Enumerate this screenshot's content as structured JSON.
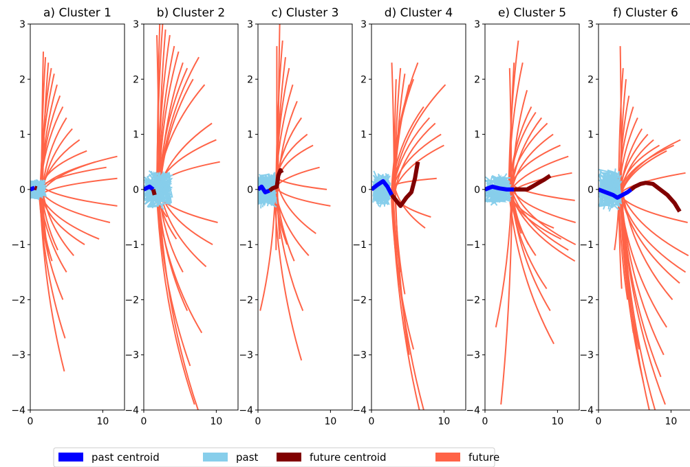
{
  "colors": {
    "past_centroid": "#0000ff",
    "past": "#87ceeb",
    "future_centroid": "#800000",
    "future": "#ff6347"
  },
  "legend": {
    "placement": "bottom-left",
    "items": [
      {
        "label": "past centroid",
        "color": "#0000ff"
      },
      {
        "label": "past",
        "color": "#87ceeb"
      },
      {
        "label": "future centroid",
        "color": "#800000"
      },
      {
        "label": "future",
        "color": "#ff6347"
      }
    ]
  },
  "chart_data": [
    {
      "type": "line",
      "title": "a) Cluster 1",
      "xlim": [
        0,
        13
      ],
      "ylim": [
        -4,
        3
      ],
      "xticks": [
        0,
        10
      ],
      "yticks": [
        -4,
        -3,
        -2,
        -1,
        0,
        1,
        2,
        3
      ],
      "past_centroid": [
        [
          0.0,
          0.0
        ],
        [
          0.6,
          0.03
        ]
      ],
      "future_centroid": [
        [
          0.6,
          0.03
        ],
        [
          0.9,
          0.02
        ]
      ],
      "future_fan": {
        "origin": [
          1.5,
          0.0
        ],
        "endpoints": [
          [
            1.8,
            2.5
          ],
          [
            2.1,
            2.4
          ],
          [
            2.5,
            2.3
          ],
          [
            2.9,
            2.2
          ],
          [
            3.3,
            2.1
          ],
          [
            3.7,
            1.9
          ],
          [
            4.1,
            1.7
          ],
          [
            4.5,
            1.5
          ],
          [
            5.0,
            1.3
          ],
          [
            5.8,
            1.1
          ],
          [
            6.8,
            0.9
          ],
          [
            7.8,
            0.7
          ],
          [
            9.0,
            0.5
          ],
          [
            10.5,
            0.4
          ],
          [
            12.0,
            0.6
          ],
          [
            12.0,
            0.2
          ],
          [
            12.0,
            -0.3
          ],
          [
            11.0,
            -0.6
          ],
          [
            9.5,
            -0.9
          ],
          [
            7.5,
            -1.0
          ],
          [
            6.0,
            -1.2
          ],
          [
            5.0,
            -1.5
          ],
          [
            4.5,
            -2.0
          ],
          [
            4.8,
            -2.7
          ],
          [
            4.7,
            -3.3
          ],
          [
            3.8,
            -1.1
          ],
          [
            3.0,
            -1.3
          ],
          [
            2.5,
            -1.2
          ],
          [
            2.0,
            -0.9
          ],
          [
            1.6,
            -0.6
          ]
        ]
      },
      "past_blob": {
        "center": [
          0.9,
          0.0
        ],
        "rx": 1.3,
        "ry": 0.2
      }
    },
    {
      "type": "line",
      "title": "b) Cluster 2",
      "xlim": [
        0,
        13
      ],
      "ylim": [
        -4,
        3
      ],
      "xticks": [
        0,
        10
      ],
      "yticks": [
        -4,
        -3,
        -2,
        -1,
        0,
        1,
        2,
        3
      ],
      "past_centroid": [
        [
          0.0,
          0.0
        ],
        [
          0.8,
          0.05
        ],
        [
          1.3,
          0.0
        ]
      ],
      "future_centroid": [
        [
          1.3,
          0.0
        ],
        [
          1.5,
          -0.1
        ]
      ],
      "future_fan": {
        "origin": [
          2.0,
          0.0
        ],
        "endpoints": [
          [
            1.8,
            2.8
          ],
          [
            2.2,
            3.0
          ],
          [
            2.6,
            3.0
          ],
          [
            3.0,
            2.9
          ],
          [
            3.6,
            2.8
          ],
          [
            4.2,
            2.6
          ],
          [
            4.8,
            2.5
          ],
          [
            5.4,
            2.3
          ],
          [
            6.0,
            2.2
          ],
          [
            6.8,
            2.0
          ],
          [
            7.6,
            2.4
          ],
          [
            8.4,
            1.9
          ],
          [
            9.4,
            1.2
          ],
          [
            10.0,
            0.9
          ],
          [
            10.5,
            0.5
          ],
          [
            10.2,
            -0.6
          ],
          [
            9.5,
            -1.0
          ],
          [
            8.6,
            -1.4
          ],
          [
            8.0,
            -2.6
          ],
          [
            7.5,
            -4.0
          ],
          [
            7.0,
            -3.9
          ],
          [
            6.4,
            -3.2
          ],
          [
            6.0,
            -2.2
          ],
          [
            5.4,
            -1.5
          ],
          [
            4.5,
            -0.9
          ],
          [
            3.2,
            -0.5
          ]
        ]
      },
      "past_blob": {
        "center": [
          2.0,
          0.0
        ],
        "rx": 2.0,
        "ry": 0.4
      }
    },
    {
      "type": "line",
      "title": "c) Cluster 3",
      "xlim": [
        0,
        13
      ],
      "ylim": [
        -4,
        3
      ],
      "xticks": [
        0,
        10
      ],
      "yticks": [
        -4,
        -3,
        -2,
        -1,
        0,
        1,
        2,
        3
      ],
      "past_centroid": [
        [
          0.0,
          0.0
        ],
        [
          0.5,
          0.05
        ],
        [
          1.0,
          -0.05
        ],
        [
          1.6,
          -0.02
        ]
      ],
      "future_centroid": [
        [
          1.6,
          -0.02
        ],
        [
          2.0,
          0.02
        ],
        [
          2.6,
          0.05
        ],
        [
          2.8,
          0.25
        ],
        [
          3.1,
          0.35
        ],
        [
          3.3,
          0.3
        ]
      ],
      "future_fan": {
        "origin": [
          2.5,
          0.1
        ],
        "endpoints": [
          [
            2.6,
            2.6
          ],
          [
            3.0,
            3.0
          ],
          [
            3.4,
            2.7
          ],
          [
            3.8,
            2.4
          ],
          [
            4.3,
            2.2
          ],
          [
            4.8,
            1.9
          ],
          [
            5.4,
            1.6
          ],
          [
            6.0,
            1.3
          ],
          [
            6.8,
            1.0
          ],
          [
            7.6,
            0.8
          ],
          [
            8.5,
            0.4
          ],
          [
            9.5,
            0.0
          ],
          [
            10.0,
            -0.3
          ],
          [
            8.0,
            -0.8
          ],
          [
            7.0,
            -1.2
          ],
          [
            6.2,
            -2.2
          ],
          [
            6.0,
            -3.1
          ],
          [
            5.0,
            -1.3
          ],
          [
            4.0,
            -1.0
          ],
          [
            3.0,
            -0.9
          ],
          [
            2.5,
            -1.1
          ],
          [
            0.3,
            -2.2
          ]
        ]
      },
      "past_blob": {
        "center": [
          1.3,
          0.0
        ],
        "rx": 1.3,
        "ry": 0.35
      }
    },
    {
      "type": "line",
      "title": "d) Cluster 4",
      "xlim": [
        0,
        13
      ],
      "ylim": [
        -4,
        3
      ],
      "xticks": [
        0,
        10
      ],
      "yticks": [
        -4,
        -3,
        -2,
        -1,
        0,
        1,
        2,
        3
      ],
      "past_centroid": [
        [
          0.0,
          0.0
        ],
        [
          0.8,
          0.08
        ],
        [
          1.6,
          0.15
        ],
        [
          2.2,
          0.05
        ],
        [
          2.8,
          -0.1
        ]
      ],
      "future_centroid": [
        [
          2.8,
          -0.1
        ],
        [
          3.4,
          -0.2
        ],
        [
          4.0,
          -0.3
        ],
        [
          4.8,
          -0.15
        ],
        [
          5.5,
          -0.05
        ],
        [
          6.0,
          0.2
        ],
        [
          6.4,
          0.5
        ]
      ],
      "future_fan": {
        "origin": [
          3.0,
          0.0
        ],
        "endpoints": [
          [
            2.8,
            2.3
          ],
          [
            3.4,
            2.0
          ],
          [
            4.0,
            2.2
          ],
          [
            4.6,
            2.1
          ],
          [
            5.2,
            1.9
          ],
          [
            5.8,
            2.0
          ],
          [
            6.4,
            2.3
          ],
          [
            7.2,
            1.5
          ],
          [
            8.0,
            1.3
          ],
          [
            8.8,
            1.2
          ],
          [
            9.6,
            1.0
          ],
          [
            10.2,
            1.9
          ],
          [
            10.0,
            0.8
          ],
          [
            9.0,
            0.2
          ],
          [
            8.2,
            -0.5
          ],
          [
            7.4,
            -0.7
          ],
          [
            7.2,
            -4.0
          ],
          [
            6.6,
            -4.0
          ],
          [
            5.8,
            -2.9
          ],
          [
            5.2,
            -3.0
          ],
          [
            4.6,
            -1.9
          ],
          [
            4.0,
            -1.5
          ],
          [
            3.5,
            -1.0
          ]
        ]
      },
      "past_blob": {
        "center": [
          1.4,
          0.0
        ],
        "rx": 1.2,
        "ry": 0.35
      }
    },
    {
      "type": "line",
      "title": "e) Cluster 5",
      "xlim": [
        0,
        13
      ],
      "ylim": [
        -4,
        3
      ],
      "xticks": [
        0,
        10
      ],
      "yticks": [
        -4,
        -3,
        -2,
        -1,
        0,
        1,
        2,
        3
      ],
      "past_centroid": [
        [
          0.0,
          0.0
        ],
        [
          1.0,
          0.05
        ],
        [
          2.0,
          0.02
        ],
        [
          3.0,
          0.0
        ],
        [
          4.0,
          0.0
        ]
      ],
      "future_centroid": [
        [
          4.0,
          0.0
        ],
        [
          5.0,
          0.0
        ],
        [
          5.8,
          0.0
        ],
        [
          6.5,
          0.05
        ],
        [
          7.4,
          0.12
        ],
        [
          8.2,
          0.18
        ],
        [
          9.0,
          0.25
        ]
      ],
      "future_fan": {
        "origin": [
          3.5,
          0.0
        ],
        "endpoints": [
          [
            3.4,
            2.2
          ],
          [
            4.0,
            2.3
          ],
          [
            4.6,
            2.7
          ],
          [
            5.2,
            2.3
          ],
          [
            5.8,
            1.8
          ],
          [
            6.4,
            1.5
          ],
          [
            7.0,
            1.4
          ],
          [
            7.8,
            1.3
          ],
          [
            8.6,
            1.2
          ],
          [
            9.4,
            1.0
          ],
          [
            10.4,
            0.8
          ],
          [
            11.5,
            0.6
          ],
          [
            12.0,
            0.3
          ],
          [
            12.4,
            -0.2
          ],
          [
            12.5,
            -0.6
          ],
          [
            12.5,
            -1.0
          ],
          [
            12.4,
            -1.3
          ],
          [
            11.5,
            -1.1
          ],
          [
            10.5,
            -0.9
          ],
          [
            9.5,
            -0.7
          ],
          [
            8.5,
            -1.8
          ],
          [
            9.0,
            -2.2
          ],
          [
            9.5,
            -2.8
          ],
          [
            7.0,
            -1.2
          ],
          [
            6.0,
            -1.0
          ],
          [
            5.0,
            -0.8
          ],
          [
            3.5,
            -0.5
          ],
          [
            2.2,
            -3.9
          ],
          [
            1.5,
            -2.5
          ]
        ]
      },
      "past_blob": {
        "center": [
          1.8,
          0.0
        ],
        "rx": 1.8,
        "ry": 0.3
      }
    },
    {
      "type": "line",
      "title": "f) Cluster 6",
      "xlim": [
        0,
        13
      ],
      "ylim": [
        -4,
        3
      ],
      "xticks": [
        0,
        10
      ],
      "yticks": [
        -4,
        -3,
        -2,
        -1,
        0,
        1,
        2,
        3
      ],
      "past_centroid": [
        [
          0.0,
          0.0
        ],
        [
          1.0,
          -0.05
        ],
        [
          2.0,
          -0.1
        ],
        [
          2.6,
          -0.15
        ],
        [
          3.3,
          -0.1
        ],
        [
          4.0,
          -0.05
        ],
        [
          4.5,
          0.0
        ]
      ],
      "future_centroid": [
        [
          4.5,
          0.0
        ],
        [
          5.0,
          0.05
        ],
        [
          5.8,
          0.1
        ],
        [
          6.5,
          0.12
        ],
        [
          7.5,
          0.1
        ],
        [
          8.5,
          0.0
        ],
        [
          9.5,
          -0.1
        ],
        [
          10.5,
          -0.25
        ],
        [
          11.2,
          -0.4
        ]
      ],
      "future_fan": {
        "origin": [
          3.0,
          0.0
        ],
        "endpoints": [
          [
            3.0,
            2.6
          ],
          [
            3.4,
            2.2
          ],
          [
            3.8,
            2.0
          ],
          [
            4.2,
            1.7
          ],
          [
            4.8,
            1.5
          ],
          [
            5.4,
            1.3
          ],
          [
            6.0,
            1.1
          ],
          [
            6.8,
            1.0
          ],
          [
            7.6,
            0.9
          ],
          [
            8.4,
            0.8
          ],
          [
            9.4,
            0.7
          ],
          [
            10.4,
            0.8
          ],
          [
            11.3,
            0.9
          ],
          [
            12.0,
            0.3
          ],
          [
            12.3,
            -0.6
          ],
          [
            12.4,
            -1.2
          ],
          [
            12.0,
            -1.5
          ],
          [
            11.2,
            -1.7
          ],
          [
            10.2,
            -2.0
          ],
          [
            9.4,
            -2.5
          ],
          [
            9.0,
            -3.0
          ],
          [
            8.6,
            -3.4
          ],
          [
            9.2,
            -3.9
          ],
          [
            7.8,
            -4.0
          ],
          [
            7.0,
            -4.0
          ],
          [
            6.2,
            -3.5
          ],
          [
            5.6,
            -2.9
          ],
          [
            4.8,
            -2.6
          ],
          [
            4.0,
            -2.0
          ],
          [
            3.2,
            -1.8
          ],
          [
            2.2,
            -1.1
          ]
        ]
      },
      "past_blob": {
        "center": [
          1.6,
          0.0
        ],
        "rx": 1.6,
        "ry": 0.4
      }
    }
  ]
}
